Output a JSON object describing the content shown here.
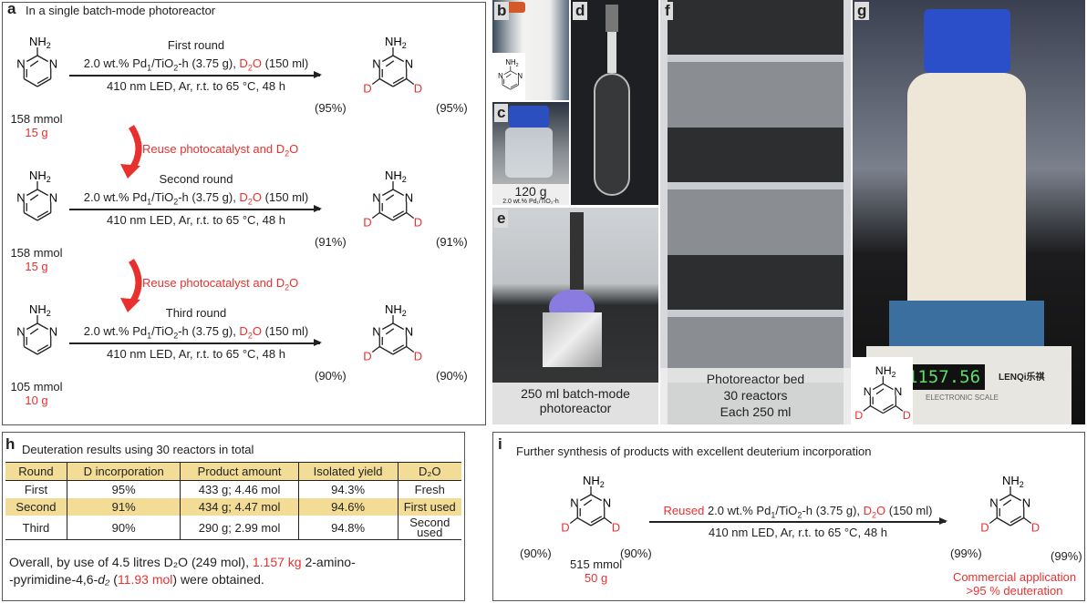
{
  "panel_a": {
    "label": "a",
    "title": "In a single  batch-mode  photoreactor",
    "rows": [
      {
        "round": "First round",
        "mmol": "158 mmol",
        "mass": "15 g",
        "yield_left": "(95%)",
        "yield_right": "(95%)"
      },
      {
        "round": "Second round",
        "mmol": "158 mmol",
        "mass": "15 g",
        "yield_left": "(91%)",
        "yield_right": "(91%)"
      },
      {
        "round": "Third round",
        "mmol": "105 mmol",
        "mass": "10 g",
        "yield_left": "(90%)",
        "yield_right": "(90%)"
      }
    ],
    "cond_pre": "2.0 wt.% Pd",
    "cond_sub1": "1",
    "cond_mid": "/TiO",
    "cond_sub2": "2",
    "cond_post": "-h (3.75 g), ",
    "cond_d2o": "D",
    "cond_d2o_sub": "2",
    "cond_d2o_post": "O",
    "cond_vol": " (150 ml)",
    "cond_line2": "410 nm LED, Ar, r.t. to 65 °C, 48 h",
    "reuse": "Reuse photocatalyst and D",
    "reuse_sub": "2",
    "reuse_post": "O"
  },
  "molecule": {
    "nh2": "NH",
    "nh2_sub": "2",
    "n": "N",
    "d": "D"
  },
  "photos": {
    "b": {
      "label": "b"
    },
    "c": {
      "label": "c",
      "caption": "120 g",
      "caption2": "2.0 wt.% Pd₁/TiO₂-h"
    },
    "d": {
      "label": "d"
    },
    "e": {
      "label": "e",
      "caption": "250 ml batch-mode",
      "caption2": "photoreactor"
    },
    "f": {
      "label": "f",
      "caption": "Photoreactor bed",
      "caption2": "30 reactors",
      "caption3": "Each 250 ml"
    },
    "g": {
      "label": "g",
      "display": "1157.56",
      "brand": "LENQi乐祺",
      "scale_text": "ELECTRONIC SCALE"
    }
  },
  "panel_h": {
    "label": "h",
    "title": "Deuteration results using 30 reactors in total",
    "headers": [
      "Round",
      "D incorporation",
      "Product amount",
      "Isolated yield",
      "D₂O"
    ],
    "rows": [
      [
        "First",
        "95%",
        "433 g; 4.46 mol",
        "94.3%",
        "Fresh"
      ],
      [
        "Second",
        "91%",
        "434 g; 4.47 mol",
        "94.6%",
        "First used"
      ],
      [
        "Third",
        "90%",
        "290 g; 2.99 mol",
        "94.8%",
        "Second used"
      ]
    ],
    "summary_1": "Overall, by use of 4.5 litres D₂O (249 mol), ",
    "summary_red1": "1.157 kg",
    "summary_2": " 2-amino-",
    "summary_3": "-pyrimidine-4,6-",
    "summary_it": "d₂",
    "summary_4": " (",
    "summary_red2": "11.93 mol",
    "summary_5": ") were obtained.",
    "highlight_color": "#f3dc95"
  },
  "panel_i": {
    "label": "i",
    "title": "Further synthesis of products with excellent deuterium incorporation",
    "sm_left": "(90%)",
    "sm_right": "(90%)",
    "mmol": "515 mmol",
    "mass": "50 g",
    "reused": "Reused",
    "cond_line2": "410 nm LED, Ar, r.t. to 65 °C, 48 h",
    "p_left": "(99%)",
    "p_right": "(99%)",
    "app1": "Commercial application",
    "app2": ">95 % deuteration"
  },
  "colors": {
    "accent_red": "#e8312f"
  }
}
